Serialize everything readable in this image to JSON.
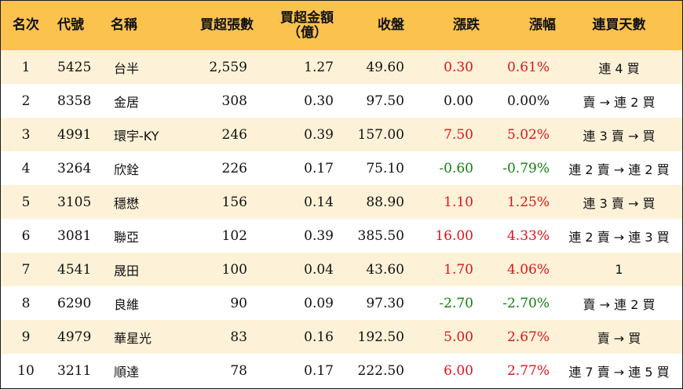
{
  "colors": {
    "header_bg": "#fbc24e",
    "odd_row_bg": "#fdf2d8",
    "up": "#e0131b",
    "down": "#11800c"
  },
  "headers": {
    "rank": "名次",
    "code": "代號",
    "name": "名稱",
    "volume": "買超張數",
    "amount_line1": "買超金額",
    "amount_line2": "（億）",
    "close": "收盤",
    "change": "漲跌",
    "pct": "漲幅",
    "streak": "連買天數"
  },
  "rows": [
    {
      "rank": "1",
      "code": "5425",
      "name": "台半",
      "volume": "2,559",
      "amount": "1.27",
      "close": "49.60",
      "change": "0.30",
      "pct": "0.61%",
      "streak": "連 4 買",
      "dir": "up"
    },
    {
      "rank": "2",
      "code": "8358",
      "name": "金居",
      "volume": "308",
      "amount": "0.30",
      "close": "97.50",
      "change": "0.00",
      "pct": "0.00%",
      "streak": "賣 → 連 2 買",
      "dir": "flat"
    },
    {
      "rank": "3",
      "code": "4991",
      "name": "環宇-KY",
      "volume": "246",
      "amount": "0.39",
      "close": "157.00",
      "change": "7.50",
      "pct": "5.02%",
      "streak": "連 3 賣 → 買",
      "dir": "up"
    },
    {
      "rank": "4",
      "code": "3264",
      "name": "欣銓",
      "volume": "226",
      "amount": "0.17",
      "close": "75.10",
      "change": "-0.60",
      "pct": "-0.79%",
      "streak": "連 2 賣 → 連 2 買",
      "dir": "down"
    },
    {
      "rank": "5",
      "code": "3105",
      "name": "穩懋",
      "volume": "156",
      "amount": "0.14",
      "close": "88.90",
      "change": "1.10",
      "pct": "1.25%",
      "streak": "連 3 賣 → 買",
      "dir": "up"
    },
    {
      "rank": "6",
      "code": "3081",
      "name": "聯亞",
      "volume": "102",
      "amount": "0.39",
      "close": "385.50",
      "change": "16.00",
      "pct": "4.33%",
      "streak": "連 2 賣 → 連 3 買",
      "dir": "up"
    },
    {
      "rank": "7",
      "code": "4541",
      "name": "晟田",
      "volume": "100",
      "amount": "0.04",
      "close": "43.60",
      "change": "1.70",
      "pct": "4.06%",
      "streak": "1",
      "dir": "up"
    },
    {
      "rank": "8",
      "code": "6290",
      "name": "良維",
      "volume": "90",
      "amount": "0.09",
      "close": "97.30",
      "change": "-2.70",
      "pct": "-2.70%",
      "streak": "賣 → 連 2 買",
      "dir": "down"
    },
    {
      "rank": "9",
      "code": "4979",
      "name": "華星光",
      "volume": "83",
      "amount": "0.16",
      "close": "192.50",
      "change": "5.00",
      "pct": "2.67%",
      "streak": "賣 → 買",
      "dir": "up"
    },
    {
      "rank": "10",
      "code": "3211",
      "name": "順達",
      "volume": "78",
      "amount": "0.17",
      "close": "222.50",
      "change": "6.00",
      "pct": "2.77%",
      "streak": "連 7 賣 → 連 5 買",
      "dir": "up"
    }
  ]
}
